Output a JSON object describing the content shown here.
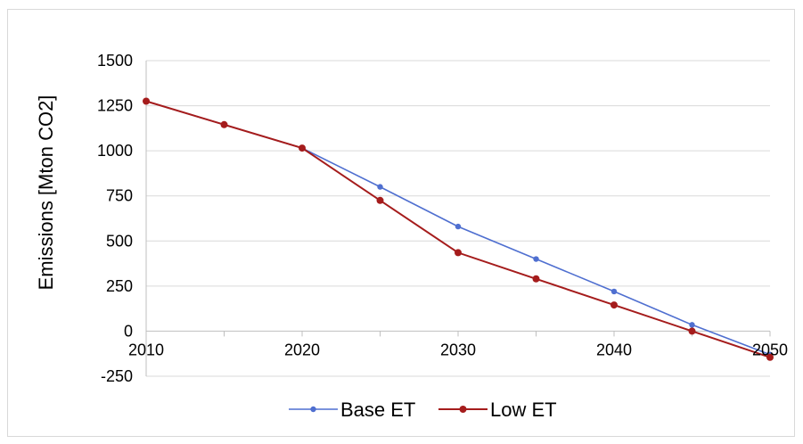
{
  "chart_data": {
    "type": "line",
    "title": "",
    "xlabel": "",
    "ylabel": "Emissions [Mton CO2]",
    "x": [
      2010,
      2015,
      2020,
      2025,
      2030,
      2035,
      2040,
      2045,
      2050
    ],
    "x_tick_labels": [
      "2010",
      "2020",
      "2030",
      "2040",
      "2050"
    ],
    "y_tick_labels": [
      "1500",
      "1250",
      "1000",
      "750",
      "500",
      "250",
      "0",
      "-250"
    ],
    "xlim": [
      2010,
      2050
    ],
    "ylim": [
      -250,
      1500
    ],
    "grid": "horizontal",
    "legend_position": "bottom",
    "series": [
      {
        "name": "Base ET",
        "color": "#4f6fd0",
        "values": [
          1275,
          1145,
          1015,
          800,
          580,
          400,
          220,
          35,
          -130
        ]
      },
      {
        "name": "Low ET",
        "color": "#a51c1c",
        "values": [
          1275,
          1145,
          1015,
          725,
          435,
          290,
          145,
          0,
          -145
        ]
      }
    ]
  }
}
